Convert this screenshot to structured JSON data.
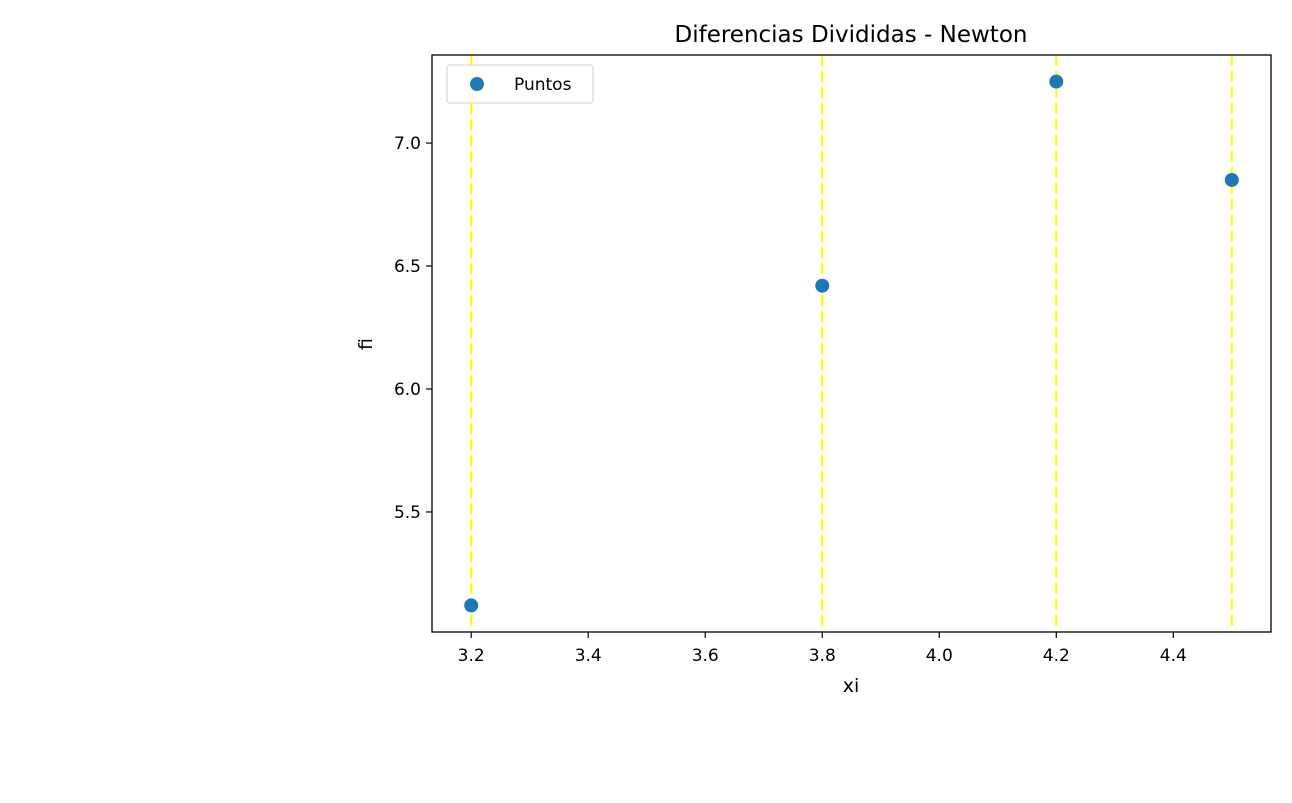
{
  "chart_data": {
    "type": "scatter",
    "title": "Diferencias Divididas - Newton",
    "xlabel": "xi",
    "ylabel": "fi",
    "xlim": [
      3.133,
      4.567
    ],
    "ylim": [
      5.012,
      7.358
    ],
    "xticks": [
      3.2,
      3.4,
      3.6,
      3.8,
      4.0,
      4.2,
      4.4
    ],
    "xtick_labels": [
      "3.2",
      "3.4",
      "3.6",
      "3.8",
      "4.0",
      "4.2",
      "4.4"
    ],
    "yticks": [
      5.5,
      6.0,
      6.5,
      7.0
    ],
    "ytick_labels": [
      "5.5",
      "6.0",
      "6.5",
      "7.0"
    ],
    "grid": false,
    "legend": {
      "position": "upper left",
      "entries": [
        "Puntos"
      ]
    },
    "series": [
      {
        "name": "Puntos",
        "marker": "o",
        "color": "#1f77b4",
        "x": [
          3.2,
          3.8,
          4.2,
          4.5
        ],
        "y": [
          5.12,
          6.42,
          7.25,
          6.85
        ]
      }
    ],
    "vlines": {
      "x": [
        3.2,
        3.8,
        4.2,
        4.5
      ],
      "color": "#ffff00",
      "style": "dashed"
    }
  }
}
